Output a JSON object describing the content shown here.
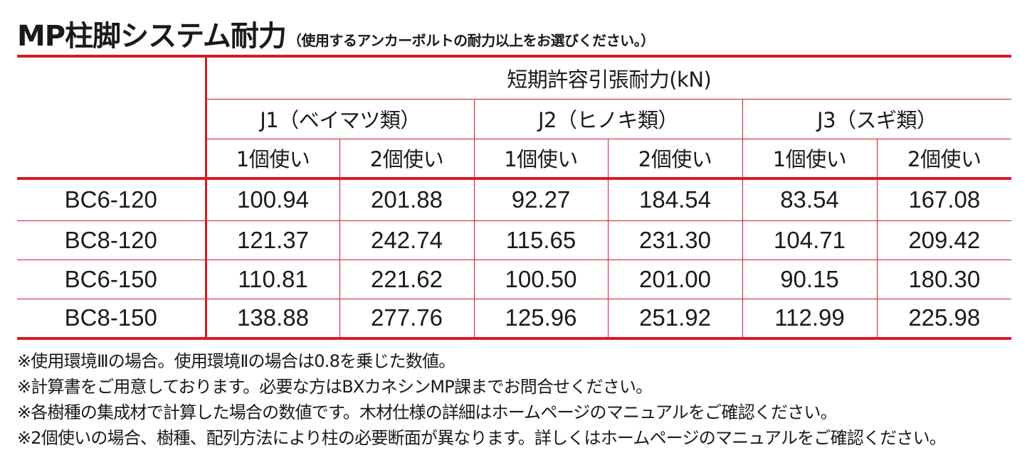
{
  "title": {
    "main": "MP柱脚システム耐力",
    "sub": "（使用するアンカーボルトの耐力以上をお選びください。）"
  },
  "table": {
    "group_header": "短期許容引張耐力(kN)",
    "wood_types": [
      "J1（ベイマツ類）",
      "J2（ヒノキ類）",
      "J3（スギ類）"
    ],
    "usage": [
      "1個使い",
      "2個使い",
      "1個使い",
      "2個使い",
      "1個使い",
      "2個使い"
    ],
    "rows": [
      {
        "label": "BC6-120",
        "values": [
          "100.94",
          "201.88",
          "92.27",
          "184.54",
          "83.54",
          "167.08"
        ]
      },
      {
        "label": "BC8-120",
        "values": [
          "121.37",
          "242.74",
          "115.65",
          "231.30",
          "104.71",
          "209.42"
        ]
      },
      {
        "label": "BC6-150",
        "values": [
          "110.81",
          "221.62",
          "100.50",
          "201.00",
          "90.15",
          "180.30"
        ]
      },
      {
        "label": "BC8-150",
        "values": [
          "138.88",
          "277.76",
          "125.96",
          "251.92",
          "112.99",
          "225.98"
        ]
      }
    ]
  },
  "notes": [
    "※使用環境Ⅲの場合。使用環境Ⅱの場合は0.8を乗じた数値。",
    "※計算書をご用意しております。必要な方はBXカネシンMP課までお問合せください。",
    "※各樹種の集成材で計算した場合の数値です。木材仕様の詳細はホームページのマニュアルをご確認ください。",
    "※2個使いの場合、樹種、配列方法により柱の必要断面が異なります。詳しくはホームページのマニュアルをご確認ください。"
  ],
  "colors": {
    "rule": "#d71a28",
    "text": "#1a1a1a"
  }
}
